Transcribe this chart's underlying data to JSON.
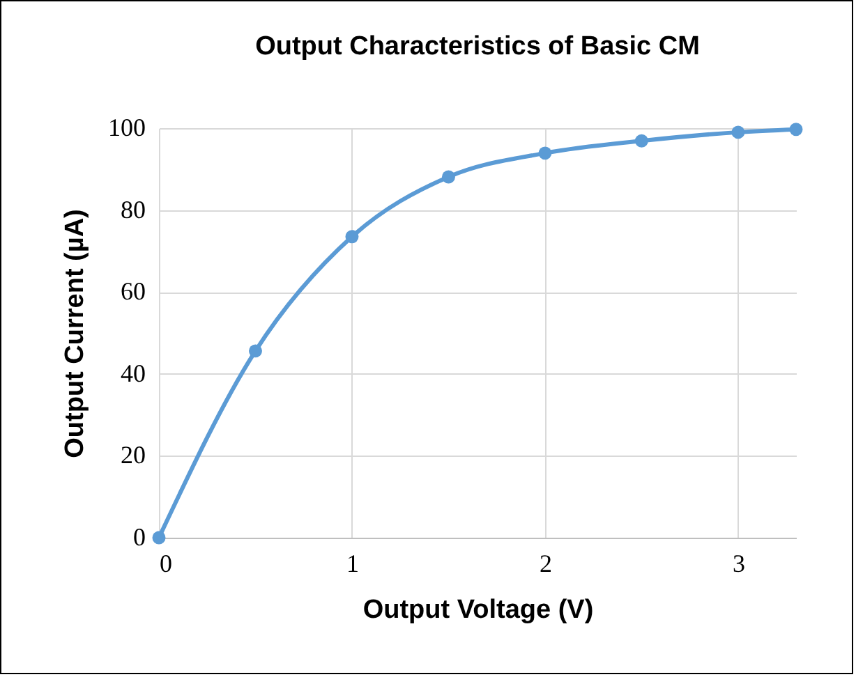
{
  "chart_data": {
    "type": "line",
    "title": "Output Characteristics of Basic CM",
    "xlabel": "Output Voltage (V)",
    "ylabel": "Output Current (µA)",
    "x": [
      0,
      0.5,
      1,
      1.5,
      2,
      2.5,
      3,
      3.3
    ],
    "series": [
      {
        "color": "#5b9bd5",
        "values": [
          0,
          45.6,
          73.5,
          88.1,
          93.9,
          96.9,
          99,
          99.7
        ]
      }
    ],
    "xlim": [
      0,
      3.3
    ],
    "xticks": [
      0,
      1,
      2,
      3
    ],
    "ylim": [
      0,
      100
    ],
    "yticks": [
      0,
      20,
      40,
      60,
      80,
      100
    ],
    "grid": true,
    "marker": "circle",
    "line_style": "solid"
  }
}
